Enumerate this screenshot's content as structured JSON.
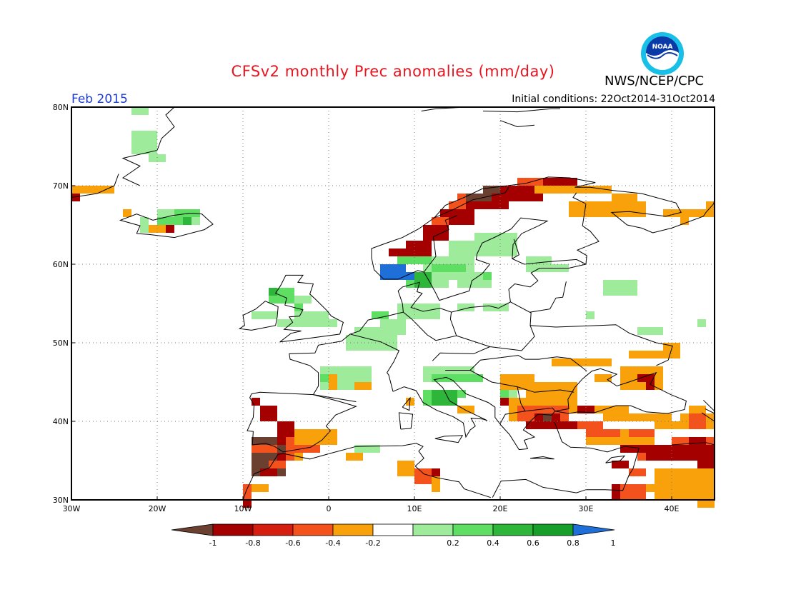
{
  "header": {
    "title": "CFSv2 monthly Prec anomalies (mm/day)",
    "org": "NWS/NCEP/CPC",
    "period": "Feb 2015",
    "initial_conditions": "Initial conditions: 22Oct2014-31Oct2014",
    "logo_text": "NOAA"
  },
  "map": {
    "lon_range": [
      -30,
      45
    ],
    "lat_range": [
      30,
      80
    ],
    "lon_ticks": [
      {
        "value": -30,
        "label": "30W"
      },
      {
        "value": -20,
        "label": "20W"
      },
      {
        "value": -10,
        "label": "10W"
      },
      {
        "value": 0,
        "label": "0"
      },
      {
        "value": 10,
        "label": "10E"
      },
      {
        "value": 20,
        "label": "20E"
      },
      {
        "value": 30,
        "label": "30E"
      },
      {
        "value": 40,
        "label": "40E"
      }
    ],
    "lat_ticks": [
      {
        "value": 30,
        "label": "30N"
      },
      {
        "value": 40,
        "label": "40N"
      },
      {
        "value": 50,
        "label": "50N"
      },
      {
        "value": 60,
        "label": "60N"
      },
      {
        "value": 70,
        "label": "70N"
      },
      {
        "value": 80,
        "label": "80N"
      }
    ],
    "grid": "dotted",
    "colors": {
      "lt_-1": "#6b4031",
      "-1_-0.8": "#a50000",
      "-0.8_-0.6": "#d61e10",
      "-0.6_-0.4": "#f4521c",
      "-0.4_-0.2": "#f8a10a",
      "0.2_0.4": "#9eeb9c",
      "0.4_0.6": "#5fde64",
      "0.6_0.8": "#2db63a",
      "0.8_1": "#16a02a",
      "gt_1": "#1f6fd8"
    },
    "anomaly_regions": [
      {
        "level": "0.2_0.4",
        "cells": [
          [
            -23,
            79,
            2,
            1
          ],
          [
            -23,
            76,
            3,
            3
          ],
          [
            -21,
            73,
            2,
            1
          ]
        ]
      },
      {
        "level": "-0.4_-0.2",
        "cells": [
          [
            -30,
            69,
            5,
            1
          ],
          [
            -24,
            66,
            1,
            1
          ],
          [
            -21,
            64,
            3,
            1
          ]
        ]
      },
      {
        "level": "-1_-0.8",
        "cells": [
          [
            -30,
            68,
            1,
            1
          ],
          [
            -19,
            64,
            1,
            1
          ]
        ]
      },
      {
        "level": "0.2_0.4",
        "cells": [
          [
            -22,
            65,
            1,
            2
          ],
          [
            -20,
            66,
            2,
            1
          ],
          [
            -17,
            65,
            2,
            1
          ]
        ]
      },
      {
        "level": "0.4_0.6",
        "cells": [
          [
            -20,
            65,
            4,
            1
          ],
          [
            -18,
            66,
            3,
            1
          ]
        ]
      },
      {
        "level": "0.6_0.8",
        "cells": [
          [
            -17,
            65,
            1,
            1
          ]
        ]
      },
      {
        "level": "-1_-0.8",
        "cells": [
          [
            16,
            68,
            5,
            2
          ],
          [
            18,
            69,
            7,
            2
          ],
          [
            13,
            66,
            4,
            2
          ],
          [
            11,
            64,
            3,
            2
          ],
          [
            9,
            62,
            3,
            2
          ],
          [
            7,
            61,
            2,
            1
          ],
          [
            25,
            70,
            4,
            1
          ],
          [
            23,
            69,
            2,
            1
          ]
        ]
      },
      {
        "level": "-0.6_-0.4",
        "cells": [
          [
            15,
            68,
            2,
            1
          ],
          [
            14,
            67,
            2,
            1
          ],
          [
            12,
            65,
            2,
            1
          ],
          [
            22,
            70,
            3,
            1
          ]
        ]
      },
      {
        "level": "lt_-1",
        "cells": [
          [
            16,
            68,
            3,
            1
          ],
          [
            18,
            69,
            2,
            1
          ]
        ]
      },
      {
        "level": "-0.4_-0.2",
        "cells": [
          [
            24,
            69,
            6,
            1
          ],
          [
            29,
            69,
            4,
            1
          ],
          [
            28,
            67,
            9,
            2
          ],
          [
            33,
            68,
            3,
            1
          ],
          [
            39,
            66,
            3,
            1
          ],
          [
            42,
            66,
            3,
            1
          ],
          [
            44,
            67,
            1,
            1
          ],
          [
            41,
            65,
            1,
            1
          ]
        ]
      },
      {
        "level": "0.2_0.4",
        "cells": [
          [
            14,
            62,
            3,
            3
          ],
          [
            17,
            63,
            5,
            3
          ],
          [
            11,
            60,
            6,
            3
          ],
          [
            15,
            58,
            4,
            2
          ],
          [
            10,
            57,
            4,
            1
          ],
          [
            23,
            60,
            3,
            2
          ],
          [
            25,
            59,
            3,
            1
          ],
          [
            32,
            57,
            4,
            2
          ],
          [
            33,
            56,
            3,
            1
          ],
          [
            30,
            53,
            1,
            1
          ],
          [
            36,
            51,
            3,
            1
          ],
          [
            43,
            52,
            1,
            1
          ],
          [
            18,
            54,
            3,
            1
          ],
          [
            15,
            54,
            2,
            1
          ],
          [
            8,
            54,
            5,
            2
          ],
          [
            6,
            52,
            3,
            2
          ],
          [
            3,
            51,
            3,
            1
          ],
          [
            2,
            50,
            6,
            2
          ],
          [
            -6,
            55,
            4,
            1
          ],
          [
            -4,
            53,
            4,
            2
          ],
          [
            -3,
            52,
            4,
            1
          ],
          [
            -6,
            52,
            2,
            1
          ],
          [
            -9,
            53,
            3,
            1
          ],
          [
            -1,
            46,
            6,
            2
          ],
          [
            -1,
            44,
            6,
            1
          ],
          [
            11,
            46,
            6,
            2
          ],
          [
            15,
            45,
            3,
            1
          ],
          [
            20,
            43,
            2,
            2
          ],
          [
            3,
            36,
            3,
            1
          ]
        ]
      },
      {
        "level": "0.4_0.6",
        "cells": [
          [
            8,
            60,
            4,
            1
          ],
          [
            7,
            59,
            2,
            1
          ],
          [
            12,
            59,
            4,
            1
          ],
          [
            9,
            58,
            3,
            2
          ],
          [
            18,
            58,
            1,
            1
          ],
          [
            -7,
            56,
            3,
            2
          ],
          [
            -4,
            54,
            1,
            1
          ],
          [
            5,
            53,
            2,
            1
          ],
          [
            -1,
            45,
            2,
            1
          ],
          [
            12,
            45,
            6,
            1
          ],
          [
            11,
            43,
            3,
            2
          ],
          [
            14,
            43,
            2,
            1
          ],
          [
            20,
            43,
            1,
            1
          ]
        ]
      },
      {
        "level": "0.6_0.8",
        "cells": [
          [
            10,
            58,
            2,
            2
          ],
          [
            12,
            43,
            3,
            2
          ],
          [
            -7,
            56,
            1,
            1
          ],
          [
            8,
            59,
            1,
            1
          ]
        ]
      },
      {
        "level": "gt_1",
        "cells": [
          [
            6,
            59,
            3,
            2
          ],
          [
            8,
            58,
            2,
            1
          ]
        ]
      },
      {
        "level": "lt_-1",
        "cells": [
          [
            -9,
            37,
            4,
            5
          ],
          [
            -7,
            36,
            2,
            1
          ]
        ]
      },
      {
        "level": "-1_-0.8",
        "cells": [
          [
            -8,
            41,
            2,
            2
          ],
          [
            -6,
            39,
            2,
            3
          ],
          [
            -9,
            42,
            1,
            1
          ],
          [
            -6,
            35,
            1,
            2
          ],
          [
            -8,
            33,
            2,
            1
          ],
          [
            -10,
            30,
            1,
            2
          ],
          [
            12,
            33,
            1,
            1
          ]
        ]
      },
      {
        "level": "-0.6_-0.4",
        "cells": [
          [
            -5,
            37,
            2,
            3
          ],
          [
            -3,
            38,
            1,
            2
          ],
          [
            -9,
            36,
            3,
            1
          ],
          [
            -3,
            36,
            2,
            1
          ],
          [
            -10,
            31,
            1,
            2
          ],
          [
            -7,
            34,
            2,
            1
          ],
          [
            10,
            33,
            2,
            2
          ]
        ]
      },
      {
        "level": "-0.4_-0.2",
        "cells": [
          [
            -4,
            38,
            5,
            2
          ],
          [
            -2,
            37,
            2,
            1
          ],
          [
            -4,
            35,
            1,
            1
          ],
          [
            -9,
            31,
            2,
            1
          ],
          [
            2,
            35,
            2,
            1
          ],
          [
            8,
            34,
            2,
            2
          ],
          [
            12,
            32,
            1,
            2
          ],
          [
            0,
            45,
            1,
            2
          ],
          [
            3,
            44,
            2,
            1
          ],
          [
            9,
            42,
            1,
            1
          ],
          [
            15,
            41,
            2,
            1
          ]
        ]
      },
      {
        "level": "-0.4_-0.2",
        "cells": [
          [
            20,
            45,
            4,
            2
          ],
          [
            23,
            44,
            6,
            3
          ],
          [
            26,
            47,
            7,
            1
          ],
          [
            31,
            45,
            2,
            1
          ],
          [
            34,
            46,
            5,
            3
          ],
          [
            35,
            48,
            6,
            1
          ],
          [
            39,
            49,
            2,
            1
          ],
          [
            21,
            42,
            7,
            3
          ],
          [
            28,
            41,
            7,
            1
          ],
          [
            32,
            40,
            8,
            1
          ],
          [
            30,
            38,
            8,
            2
          ],
          [
            36,
            36,
            9,
            2
          ],
          [
            38,
            33,
            7,
            4
          ],
          [
            41,
            32,
            4,
            1
          ],
          [
            37,
            31,
            2,
            1
          ],
          [
            40,
            30,
            3,
            1
          ],
          [
            43,
            29,
            2,
            1
          ],
          [
            44,
            35,
            1,
            1
          ],
          [
            38,
            39,
            7,
            1
          ],
          [
            41,
            40,
            4,
            1
          ],
          [
            42,
            41,
            2,
            1
          ]
        ]
      },
      {
        "level": "-0.6_-0.4",
        "cells": [
          [
            22,
            41,
            6,
            2
          ],
          [
            27,
            39,
            5,
            1
          ],
          [
            30,
            38,
            4,
            1
          ],
          [
            35,
            38,
            3,
            1
          ],
          [
            42,
            40,
            2,
            2
          ],
          [
            40,
            37,
            5,
            2
          ],
          [
            36,
            35,
            4,
            1
          ],
          [
            41,
            36,
            4,
            1
          ],
          [
            34,
            31,
            3,
            2
          ],
          [
            33,
            30,
            2,
            1
          ],
          [
            35,
            33,
            2,
            1
          ]
        ]
      },
      {
        "level": "-1_-0.8",
        "cells": [
          [
            24,
            40,
            3,
            2
          ],
          [
            23,
            39,
            2,
            1
          ],
          [
            27,
            39,
            2,
            1
          ],
          [
            34,
            36,
            3,
            1
          ],
          [
            37,
            36,
            8,
            2
          ],
          [
            43,
            35,
            2,
            2
          ],
          [
            42,
            37,
            2,
            1
          ],
          [
            33,
            34,
            2,
            1
          ],
          [
            33,
            31,
            1,
            2
          ],
          [
            36,
            45,
            2,
            1
          ],
          [
            37,
            44,
            1,
            1
          ],
          [
            29,
            41,
            2,
            1
          ],
          [
            20,
            42,
            1,
            1
          ]
        ]
      },
      {
        "level": "lt_-1",
        "cells": [
          [
            25,
            40,
            1,
            1
          ]
        ]
      }
    ]
  },
  "colorbar": {
    "labels": [
      "-1",
      "-0.8",
      "-0.6",
      "-0.4",
      "-0.2",
      "0.2",
      "0.4",
      "0.6",
      "0.8",
      "1"
    ]
  }
}
